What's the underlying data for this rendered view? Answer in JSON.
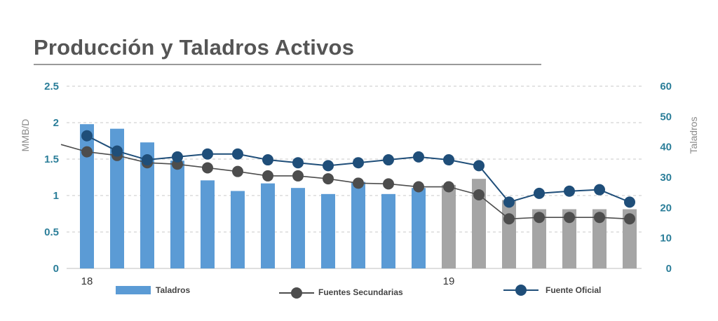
{
  "title": "Producción y Taladros Activos",
  "chart_data": {
    "type": "bar+line",
    "y_left": {
      "label": "MMB/D",
      "lim": [
        0,
        2.5
      ],
      "ticks": [
        "0",
        "0.5",
        "1",
        "1.5",
        "2",
        "2.5"
      ]
    },
    "y_right": {
      "label": "Taladros",
      "lim": [
        0,
        60
      ],
      "ticks": [
        "0",
        "10",
        "20",
        "30",
        "40",
        "50",
        "60"
      ]
    },
    "x_labels": [
      {
        "index": 0,
        "text": "18"
      },
      {
        "index": 12,
        "text": "19"
      }
    ],
    "grid": true,
    "legend_position": "bottom",
    "bars": {
      "name": "Taladros",
      "values": [
        47.5,
        46,
        41.5,
        35.5,
        29,
        25.5,
        28,
        26.5,
        24.5,
        28.5,
        24.5,
        26.5,
        27.5,
        29.5,
        22.5,
        19.5,
        19.5,
        19.5,
        19.5
      ]
    },
    "bar_colors": [
      "#5b9bd5",
      "#5b9bd5",
      "#5b9bd5",
      "#5b9bd5",
      "#5b9bd5",
      "#5b9bd5",
      "#5b9bd5",
      "#5b9bd5",
      "#5b9bd5",
      "#5b9bd5",
      "#5b9bd5",
      "#5b9bd5",
      "#a5a5a5",
      "#a5a5a5",
      "#a5a5a5",
      "#a5a5a5",
      "#a5a5a5",
      "#a5a5a5",
      "#a5a5a5"
    ],
    "series": [
      {
        "name": "Fuentes Secundarias",
        "color": "#4d4d4d",
        "start_value": 1.7,
        "values": [
          1.6,
          1.55,
          1.45,
          1.43,
          1.38,
          1.33,
          1.27,
          1.27,
          1.23,
          1.17,
          1.16,
          1.12,
          1.12,
          1.01,
          0.68,
          0.7,
          0.7,
          0.7,
          0.68
        ]
      },
      {
        "name": "Fuente Oficial",
        "color": "#1f4e79",
        "values": [
          1.82,
          1.61,
          1.49,
          1.53,
          1.57,
          1.57,
          1.49,
          1.45,
          1.41,
          1.45,
          1.49,
          1.53,
          1.49,
          1.41,
          0.91,
          1.03,
          1.06,
          1.08,
          0.91
        ]
      }
    ]
  },
  "legend": {
    "bars_label": "Taladros",
    "secondary_label": "Fuentes Secundarias",
    "official_label": "Fuente Oficial"
  }
}
